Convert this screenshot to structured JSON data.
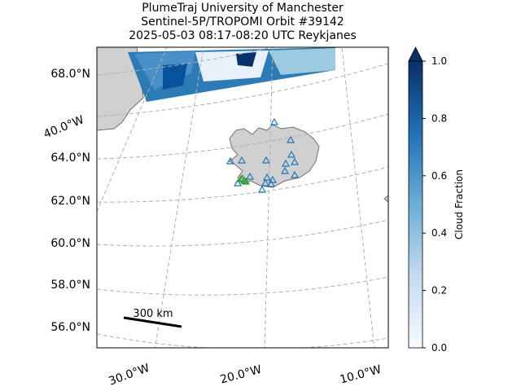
{
  "title": {
    "lines": [
      "PlumeTraj    University of Manchester",
      "Sentinel-5P/TROPOMI Orbit #39142",
      "2025-05-03   08:17-08:20 UTC   Reykjanes"
    ]
  },
  "map": {
    "lat_labels": [
      "68.0°N",
      "64.0°N",
      "62.0°N",
      "60.0°N",
      "58.0°N",
      "56.0°N"
    ],
    "lon_labels": [
      "40.0°W",
      "30.0°W",
      "20.0°W",
      "10.0°W"
    ],
    "scale_bar": "300 km"
  },
  "colorbar": {
    "label": "Cloud Fraction",
    "lim": [
      0,
      1
    ],
    "ticks": [
      {
        "value": 0,
        "label": "0.0"
      },
      {
        "value": 0.2,
        "label": "0.2"
      },
      {
        "value": 0.4,
        "label": "0.4"
      },
      {
        "value": 0.6,
        "label": "0.6"
      },
      {
        "value": 0.8,
        "label": "0.8"
      },
      {
        "value": 1,
        "label": "1.0"
      }
    ],
    "colors": [
      "#f7fbff",
      "#c6dbef",
      "#6baed6",
      "#2171b5",
      "#08306b"
    ]
  }
}
